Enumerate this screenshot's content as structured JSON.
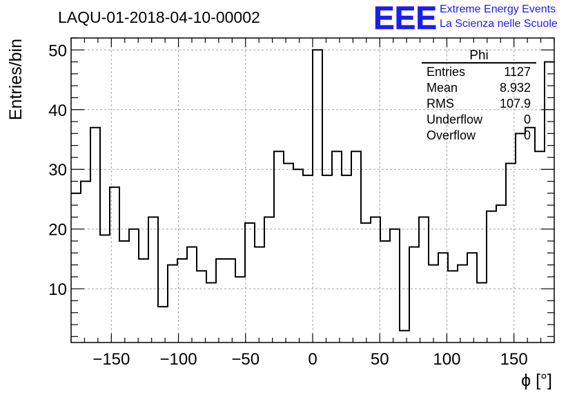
{
  "chart_data": {
    "type": "bar",
    "style": "step-histogram",
    "title": "LAQU-01-2018-04-10-00002",
    "xlabel": "ϕ [°]",
    "ylabel": "Entries/bin",
    "xlim": [
      -180,
      180
    ],
    "ylim": [
      1,
      52
    ],
    "grid": true,
    "bin_width": 7.2,
    "values": [
      26,
      28,
      37,
      19,
      27,
      18,
      20,
      15,
      22,
      7,
      14,
      15,
      17,
      13,
      11,
      15,
      15,
      12,
      21,
      17,
      22,
      33,
      31,
      30,
      29,
      50,
      29,
      33,
      29,
      33,
      21,
      22,
      18,
      20,
      3,
      17,
      22,
      14,
      16,
      13,
      14,
      16,
      11,
      23,
      24,
      31,
      36,
      37,
      33,
      48
    ],
    "x_ticks": [
      -150,
      -100,
      -50,
      0,
      50,
      100,
      150
    ],
    "y_ticks": [
      10,
      20,
      30,
      40,
      50
    ],
    "x_tick_labels": [
      "−150",
      "−100",
      "−50",
      "0",
      "50",
      "100",
      "150"
    ],
    "y_tick_labels": [
      "10",
      "20",
      "30",
      "40",
      "50"
    ],
    "stats_box": {
      "title": "Phi",
      "placement": "top-right",
      "rows": [
        {
          "label": "Entries",
          "value": "1127"
        },
        {
          "label": "Mean",
          "value": "8.932"
        },
        {
          "label": "RMS",
          "value": "107.9"
        },
        {
          "label": "Underflow",
          "value": "0"
        },
        {
          "label": "Overflow",
          "value": "0"
        }
      ]
    },
    "logo": {
      "mark": "EEE",
      "line1": "Extreme Energy Events",
      "line2": "La Scienza nelle Scuole",
      "color": "#1c1cf0"
    },
    "line_color": "#000000",
    "grid_color": "#a0a0a0"
  }
}
